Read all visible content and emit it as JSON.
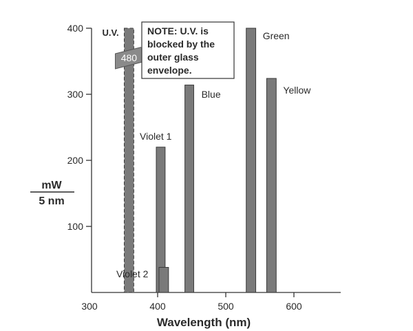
{
  "chart_data": {
    "type": "bar",
    "xlabel": "Wavelength (nm)",
    "ylabel_numerator": "mW",
    "ylabel_denominator": "5 nm",
    "xlim": [
      300,
      680
    ],
    "ylim": [
      0,
      400
    ],
    "xticks": [
      300,
      400,
      500,
      600
    ],
    "yticks": [
      100,
      200,
      300,
      400
    ],
    "lines": [
      {
        "name": "U.V.",
        "x_start": 351,
        "x_end": 365,
        "value": 400,
        "blocked": true
      },
      {
        "name": "Violet 1",
        "x_start": 398,
        "x_end": 411,
        "value": 220
      },
      {
        "name": "Violet 2",
        "x_start": 402,
        "x_end": 416,
        "value": 38
      },
      {
        "name": "Blue",
        "x_start": 440,
        "x_end": 453,
        "value": 314
      },
      {
        "name": "Green",
        "x_start": 530,
        "x_end": 544,
        "value": 400
      },
      {
        "name": "Yellow",
        "x_start": 560,
        "x_end": 574,
        "value": 324
      }
    ],
    "break_label": "480",
    "note": [
      "NOTE: U.V. is",
      "blocked by the",
      "outer glass",
      "envelope."
    ],
    "bar_color": "#7a7a7a",
    "bar_stroke": "#3a3a3a"
  }
}
